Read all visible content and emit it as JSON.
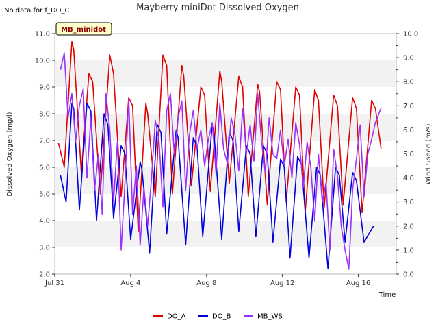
{
  "chart_data": {
    "type": "line",
    "title": "Mayberry miniDot Dissolved Oxygen",
    "note": "No data for f_DO_C",
    "site_badge": "MB_minidot",
    "xlabel": "Time",
    "ylabel": "Dissolved Oxygen (mg/l)",
    "y2label": "Wind Speed (m/s)",
    "x_ticks": [
      {
        "day": 0,
        "label": "Jul 31"
      },
      {
        "day": 4,
        "label": "Aug 4"
      },
      {
        "day": 8,
        "label": "Aug 8"
      },
      {
        "day": 12,
        "label": "Aug 12"
      },
      {
        "day": 16,
        "label": "Aug 16"
      }
    ],
    "xlim": [
      0,
      18
    ],
    "ylim": [
      2.0,
      11.0
    ],
    "y_ticks": [
      "2.0",
      "3.0",
      "4.0",
      "5.0",
      "6.0",
      "7.0",
      "8.0",
      "9.0",
      "10.0",
      "11.0"
    ],
    "y2lim": [
      0.0,
      10.0
    ],
    "y2_ticks": [
      "0.0",
      "1.0",
      "2.0",
      "3.0",
      "4.0",
      "5.0",
      "6.0",
      "7.0",
      "8.0",
      "9.0",
      "10.0"
    ],
    "grid": "horizontal bands",
    "legend_position": "bottom-center",
    "series": [
      {
        "name": "DO_A",
        "color": "#e00000",
        "axis": "left",
        "x": [
          0.2,
          0.5,
          0.9,
          1.0,
          1.4,
          1.8,
          2.0,
          2.4,
          2.9,
          3.1,
          3.5,
          3.9,
          4.1,
          4.4,
          4.8,
          4.9,
          5.3,
          5.7,
          5.9,
          6.2,
          6.7,
          6.8,
          7.2,
          7.7,
          7.9,
          8.2,
          8.7,
          8.8,
          9.2,
          9.7,
          9.9,
          10.2,
          10.7,
          10.8,
          11.2,
          11.7,
          11.9,
          12.2,
          12.7,
          12.9,
          13.2,
          13.7,
          13.9,
          14.2,
          14.7,
          14.9,
          15.2,
          15.7,
          15.9,
          16.2,
          16.7,
          16.9,
          17.2
        ],
        "y": [
          6.9,
          6.0,
          10.7,
          10.4,
          5.8,
          9.5,
          9.2,
          5.0,
          10.2,
          9.5,
          4.9,
          8.6,
          8.3,
          3.6,
          8.4,
          8.0,
          4.9,
          10.2,
          9.8,
          5.0,
          9.8,
          9.4,
          5.3,
          9.0,
          8.7,
          5.1,
          9.6,
          9.2,
          5.4,
          9.4,
          9.0,
          4.9,
          9.1,
          8.8,
          4.6,
          9.2,
          8.9,
          4.7,
          9.0,
          8.7,
          4.3,
          8.9,
          8.5,
          4.5,
          8.7,
          8.3,
          4.6,
          8.6,
          8.2,
          4.3,
          8.5,
          8.2,
          6.7
        ]
      },
      {
        "name": "DO_B",
        "color": "#0000dd",
        "axis": "left",
        "x": [
          0.3,
          0.6,
          0.9,
          1.0,
          1.3,
          1.7,
          1.9,
          2.2,
          2.6,
          2.8,
          3.1,
          3.5,
          3.7,
          4.0,
          4.5,
          4.6,
          5.0,
          5.4,
          5.6,
          5.9,
          6.4,
          6.5,
          6.9,
          7.3,
          7.5,
          7.8,
          8.3,
          8.4,
          8.8,
          9.2,
          9.4,
          9.7,
          10.1,
          10.3,
          10.6,
          11.0,
          11.2,
          11.5,
          11.9,
          12.1,
          12.4,
          12.8,
          13.0,
          13.4,
          13.8,
          14.0,
          14.4,
          14.8,
          15.0,
          15.3,
          15.7,
          15.9,
          16.3,
          16.8
        ],
        "y": [
          5.7,
          4.7,
          8.4,
          8.2,
          4.4,
          8.4,
          8.1,
          4.0,
          8.0,
          7.6,
          4.1,
          6.8,
          6.5,
          3.3,
          6.2,
          5.9,
          2.8,
          7.6,
          7.3,
          3.5,
          7.4,
          7.1,
          3.1,
          7.1,
          6.8,
          3.4,
          7.6,
          7.2,
          3.3,
          7.3,
          7.0,
          3.6,
          6.8,
          6.5,
          3.4,
          6.8,
          6.5,
          3.2,
          6.3,
          6.0,
          2.6,
          6.4,
          6.1,
          2.6,
          6.0,
          5.7,
          2.2,
          6.0,
          5.7,
          3.2,
          5.8,
          5.5,
          3.2,
          3.8
        ]
      },
      {
        "name": "MB_WS",
        "color": "#9b30ff",
        "axis": "right",
        "x": [
          0.3,
          0.5,
          0.7,
          0.9,
          1.1,
          1.3,
          1.5,
          1.7,
          1.9,
          2.1,
          2.3,
          2.5,
          2.7,
          2.9,
          3.1,
          3.3,
          3.5,
          3.7,
          3.9,
          4.1,
          4.3,
          4.5,
          4.7,
          4.9,
          5.1,
          5.3,
          5.5,
          5.7,
          5.9,
          6.1,
          6.3,
          6.5,
          6.7,
          6.9,
          7.1,
          7.3,
          7.5,
          7.7,
          7.9,
          8.1,
          8.3,
          8.5,
          8.7,
          8.9,
          9.1,
          9.3,
          9.5,
          9.7,
          9.9,
          10.1,
          10.3,
          10.5,
          10.7,
          10.9,
          11.1,
          11.3,
          11.5,
          11.7,
          11.9,
          12.1,
          12.3,
          12.5,
          12.7,
          12.9,
          13.1,
          13.3,
          13.5,
          13.7,
          13.9,
          14.1,
          14.3,
          14.5,
          14.7,
          14.9,
          15.1,
          15.3,
          15.5,
          15.7,
          15.9,
          16.1,
          16.3,
          16.5,
          16.7,
          16.9,
          17.2
        ],
        "y": [
          8.5,
          9.2,
          6.5,
          7.5,
          5.5,
          7.0,
          7.7,
          4.0,
          6.5,
          3.5,
          5.0,
          2.5,
          7.5,
          6.0,
          3.0,
          5.5,
          1.0,
          3.8,
          7.3,
          2.5,
          4.5,
          1.2,
          3.6,
          2.0,
          4.0,
          6.4,
          5.5,
          2.8,
          6.8,
          7.5,
          5.0,
          6.5,
          7.2,
          3.5,
          5.8,
          6.8,
          5.2,
          6.0,
          4.5,
          5.6,
          6.3,
          4.2,
          7.1,
          5.2,
          4.6,
          6.5,
          5.8,
          4.3,
          6.9,
          5.0,
          6.2,
          4.7,
          7.5,
          5.5,
          4.2,
          6.5,
          5.0,
          4.8,
          6.0,
          4.5,
          5.6,
          4.0,
          6.3,
          5.4,
          3.6,
          5.5,
          4.4,
          2.2,
          5.0,
          3.0,
          3.8,
          1.0,
          5.2,
          4.1,
          2.0,
          1.0,
          0.2,
          3.5,
          4.8,
          6.2,
          3.2,
          5.0,
          5.6,
          6.3,
          6.9
        ]
      }
    ]
  }
}
